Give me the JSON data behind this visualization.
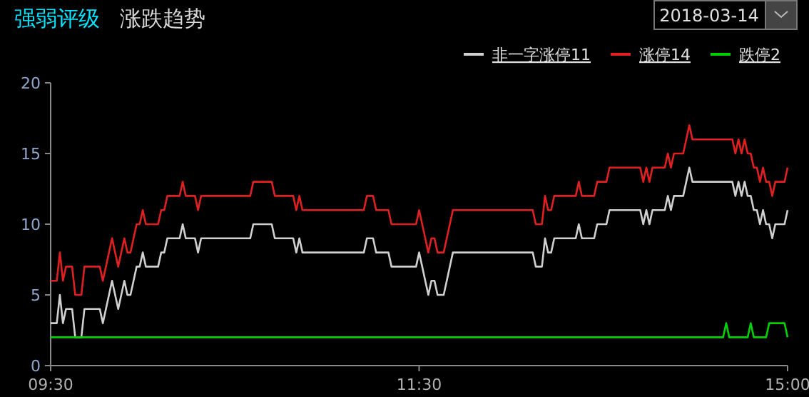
{
  "chart_data": {
    "type": "line",
    "title": "强弱评级",
    "subtitle": "涨跌趋势",
    "annotations": [
      "2018-03-14"
    ],
    "categories": [
      "09:30",
      null,
      null,
      null,
      null,
      null,
      null,
      null,
      null,
      null,
      null,
      null,
      null,
      null,
      null,
      null,
      null,
      null,
      null,
      null,
      null,
      null,
      null,
      null,
      null,
      null,
      null,
      null,
      null,
      null,
      null,
      null,
      null,
      null,
      null,
      null,
      null,
      null,
      null,
      null,
      null,
      null,
      null,
      null,
      null,
      null,
      null,
      null,
      null,
      null,
      null,
      null,
      null,
      null,
      null,
      null,
      null,
      null,
      null,
      null,
      null,
      null,
      null,
      null,
      null,
      null,
      null,
      null,
      null,
      null,
      null,
      null,
      null,
      null,
      null,
      null,
      null,
      null,
      null,
      null,
      null,
      null,
      null,
      null,
      null,
      null,
      null,
      null,
      null,
      null,
      null,
      null,
      null,
      null,
      null,
      null,
      null,
      null,
      null,
      null,
      null,
      null,
      null,
      null,
      null,
      null,
      null,
      null,
      null,
      null,
      null,
      null,
      null,
      null,
      null,
      null,
      null,
      null,
      null,
      null,
      "11:30",
      null,
      null,
      null,
      null,
      null,
      null,
      null,
      null,
      null,
      null,
      null,
      null,
      null,
      null,
      null,
      null,
      null,
      null,
      null,
      null,
      null,
      null,
      null,
      null,
      null,
      null,
      null,
      null,
      null,
      null,
      null,
      null,
      null,
      null,
      null,
      null,
      null,
      null,
      null,
      null,
      null,
      null,
      null,
      null,
      null,
      null,
      null,
      null,
      null,
      null,
      null,
      null,
      null,
      null,
      null,
      null,
      null,
      null,
      null,
      null,
      null,
      null,
      null,
      null,
      null,
      null,
      null,
      null,
      null,
      null,
      null,
      null,
      null,
      null,
      null,
      null,
      null,
      null,
      null,
      null,
      null,
      null,
      null,
      null,
      null,
      null,
      null,
      null,
      null,
      null,
      null,
      null,
      null,
      null,
      null,
      null,
      null,
      null,
      null,
      null,
      null,
      null,
      null,
      null,
      null,
      null,
      null,
      null,
      null,
      null,
      null,
      null,
      null,
      null,
      null,
      null,
      null,
      null,
      null,
      "15:00"
    ],
    "ylim": [
      0,
      20
    ],
    "yticks": [
      0,
      5,
      10,
      15,
      20
    ],
    "grid": false,
    "legend": "top right",
    "marker": "none",
    "line_style": "solid",
    "series": [
      {
        "name": "非一字涨停11",
        "color": "#d0d0d0",
        "values": [
          3,
          3,
          3,
          5,
          3,
          4,
          4,
          4,
          2,
          2,
          2,
          4,
          4,
          4,
          4,
          4,
          4,
          3,
          4,
          5,
          6,
          5,
          4,
          5,
          6,
          5,
          5,
          6,
          7,
          7,
          8,
          7,
          7,
          7,
          7,
          7,
          8,
          8,
          9,
          9,
          9,
          9,
          9,
          10,
          9,
          9,
          9,
          9,
          8,
          9,
          9,
          9,
          9,
          9,
          9,
          9,
          9,
          9,
          9,
          9,
          9,
          9,
          9,
          9,
          9,
          9,
          10,
          10,
          10,
          10,
          10,
          10,
          10,
          9,
          9,
          9,
          9,
          9,
          9,
          9,
          8,
          9,
          8,
          8,
          8,
          8,
          8,
          8,
          8,
          8,
          8,
          8,
          8,
          8,
          8,
          8,
          8,
          8,
          8,
          8,
          8,
          8,
          8,
          9,
          9,
          9,
          8,
          8,
          8,
          8,
          8,
          7,
          7,
          7,
          7,
          7,
          7,
          7,
          7,
          7,
          8,
          7,
          6,
          5,
          6,
          6,
          5,
          5,
          5,
          6,
          7,
          8,
          8,
          8,
          8,
          8,
          8,
          8,
          8,
          8,
          8,
          8,
          8,
          8,
          8,
          8,
          8,
          8,
          8,
          8,
          8,
          8,
          8,
          8,
          8,
          8,
          8,
          8,
          7,
          7,
          7,
          9,
          8,
          8,
          9,
          9,
          9,
          9,
          9,
          9,
          9,
          9,
          10,
          9,
          9,
          9,
          9,
          9,
          10,
          10,
          10,
          10,
          11,
          11,
          11,
          11,
          11,
          11,
          11,
          11,
          11,
          11,
          11,
          10,
          11,
          10,
          11,
          11,
          11,
          11,
          11,
          12,
          11,
          12,
          12,
          12,
          12,
          13,
          14,
          13,
          13,
          13,
          13,
          13,
          13,
          13,
          13,
          13,
          13,
          13,
          13,
          13,
          13,
          12,
          13,
          12,
          13,
          12,
          12,
          11,
          11,
          10,
          11,
          10,
          10,
          9,
          10,
          10,
          10,
          10,
          11
        ]
      },
      {
        "name": "涨停14",
        "color": "#e02020",
        "values": [
          6,
          6,
          6,
          8,
          6,
          7,
          7,
          7,
          5,
          5,
          5,
          7,
          7,
          7,
          7,
          7,
          7,
          6,
          7,
          8,
          9,
          8,
          7,
          8,
          9,
          8,
          8,
          9,
          10,
          10,
          11,
          10,
          10,
          10,
          10,
          10,
          11,
          11,
          12,
          12,
          12,
          12,
          12,
          13,
          12,
          12,
          12,
          12,
          11,
          12,
          12,
          12,
          12,
          12,
          12,
          12,
          12,
          12,
          12,
          12,
          12,
          12,
          12,
          12,
          12,
          12,
          13,
          13,
          13,
          13,
          13,
          13,
          13,
          12,
          12,
          12,
          12,
          12,
          12,
          12,
          11,
          12,
          11,
          11,
          11,
          11,
          11,
          11,
          11,
          11,
          11,
          11,
          11,
          11,
          11,
          11,
          11,
          11,
          11,
          11,
          11,
          11,
          11,
          12,
          12,
          12,
          11,
          11,
          11,
          11,
          11,
          10,
          10,
          10,
          10,
          10,
          10,
          10,
          10,
          10,
          11,
          10,
          9,
          8,
          9,
          9,
          8,
          8,
          8,
          9,
          10,
          11,
          11,
          11,
          11,
          11,
          11,
          11,
          11,
          11,
          11,
          11,
          11,
          11,
          11,
          11,
          11,
          11,
          11,
          11,
          11,
          11,
          11,
          11,
          11,
          11,
          11,
          11,
          10,
          10,
          10,
          12,
          11,
          11,
          12,
          12,
          12,
          12,
          12,
          12,
          12,
          12,
          13,
          12,
          12,
          12,
          12,
          12,
          13,
          13,
          13,
          13,
          14,
          14,
          14,
          14,
          14,
          14,
          14,
          14,
          14,
          14,
          14,
          13,
          14,
          13,
          14,
          14,
          14,
          14,
          14,
          15,
          14,
          15,
          15,
          15,
          15,
          16,
          17,
          16,
          16,
          16,
          16,
          16,
          16,
          16,
          16,
          16,
          16,
          16,
          16,
          16,
          16,
          15,
          16,
          15,
          16,
          15,
          15,
          14,
          14,
          13,
          14,
          13,
          13,
          12,
          13,
          13,
          13,
          13,
          14
        ]
      },
      {
        "name": "跌停2",
        "color": "#00d000",
        "values": [
          2,
          2,
          2,
          2,
          2,
          2,
          2,
          2,
          2,
          2,
          2,
          2,
          2,
          2,
          2,
          2,
          2,
          2,
          2,
          2,
          2,
          2,
          2,
          2,
          2,
          2,
          2,
          2,
          2,
          2,
          2,
          2,
          2,
          2,
          2,
          2,
          2,
          2,
          2,
          2,
          2,
          2,
          2,
          2,
          2,
          2,
          2,
          2,
          2,
          2,
          2,
          2,
          2,
          2,
          2,
          2,
          2,
          2,
          2,
          2,
          2,
          2,
          2,
          2,
          2,
          2,
          2,
          2,
          2,
          2,
          2,
          2,
          2,
          2,
          2,
          2,
          2,
          2,
          2,
          2,
          2,
          2,
          2,
          2,
          2,
          2,
          2,
          2,
          2,
          2,
          2,
          2,
          2,
          2,
          2,
          2,
          2,
          2,
          2,
          2,
          2,
          2,
          2,
          2,
          2,
          2,
          2,
          2,
          2,
          2,
          2,
          2,
          2,
          2,
          2,
          2,
          2,
          2,
          2,
          2,
          2,
          2,
          2,
          2,
          2,
          2,
          2,
          2,
          2,
          2,
          2,
          2,
          2,
          2,
          2,
          2,
          2,
          2,
          2,
          2,
          2,
          2,
          2,
          2,
          2,
          2,
          2,
          2,
          2,
          2,
          2,
          2,
          2,
          2,
          2,
          2,
          2,
          2,
          2,
          2,
          2,
          2,
          2,
          2,
          2,
          2,
          2,
          2,
          2,
          2,
          2,
          2,
          2,
          2,
          2,
          2,
          2,
          2,
          2,
          2,
          2,
          2,
          2,
          2,
          2,
          2,
          2,
          2,
          2,
          2,
          2,
          2,
          2,
          2,
          2,
          2,
          2,
          2,
          2,
          2,
          2,
          2,
          2,
          2,
          2,
          2,
          2,
          2,
          2,
          2,
          2,
          2,
          2,
          2,
          2,
          2,
          2,
          2,
          2,
          2,
          3,
          2,
          2,
          2,
          2,
          2,
          2,
          2,
          3,
          2,
          2,
          2,
          2,
          2,
          3,
          3,
          3,
          3,
          3,
          3,
          2
        ]
      }
    ]
  }
}
